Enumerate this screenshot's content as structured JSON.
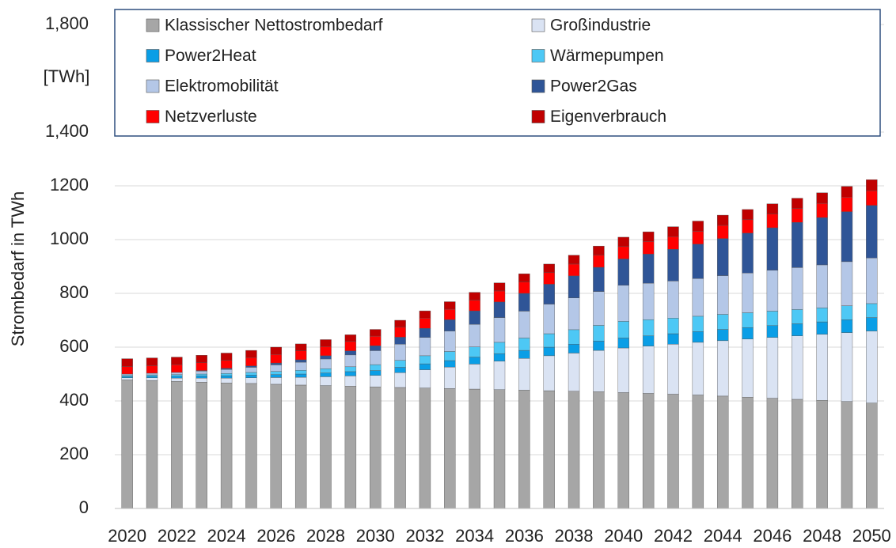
{
  "chart_data": {
    "type": "stacked_bar",
    "y_axis_label": "Strombedarf in TWh",
    "annotation": "[TWh]",
    "categories": [
      "2020",
      null,
      "2022",
      null,
      "2024",
      null,
      "2026",
      null,
      "2028",
      null,
      "2030",
      null,
      "2032",
      null,
      "2034",
      null,
      "2036",
      null,
      "2038",
      null,
      "2040",
      null,
      "2042",
      null,
      "2044",
      null,
      "2046",
      null,
      "2048",
      null,
      "2050"
    ],
    "ylim": [
      0,
      1800
    ],
    "yticks": [
      0,
      200,
      400,
      600,
      800,
      1000,
      1200,
      {
        "value": 1400,
        "label": "1,400"
      },
      {
        "value": 1800,
        "label": "1,800"
      }
    ],
    "grid": true,
    "series": [
      {
        "name": "Klassischer Nettostrombedarf",
        "color": "#a6a6a6",
        "values": [
          478,
          476,
          473,
          470,
          467,
          465,
          462,
          459,
          457,
          455,
          452,
          450,
          448,
          446,
          444,
          442,
          440,
          438,
          436,
          434,
          431,
          428,
          425,
          422,
          418,
          414,
          410,
          406,
          402,
          398,
          392
        ]
      },
      {
        "name": "Großindustrie",
        "color": "#dae3f3",
        "values": [
          8,
          10,
          12,
          15,
          18,
          21,
          25,
          29,
          33,
          38,
          43,
          55,
          68,
          80,
          93,
          106,
          118,
          130,
          142,
          154,
          166,
          176,
          186,
          196,
          206,
          216,
          226,
          236,
          246,
          256,
          268
        ]
      },
      {
        "name": "Power2Heat",
        "color": "#0a9ee6",
        "values": [
          5,
          6,
          7,
          8,
          9,
          10,
          11,
          12,
          14,
          16,
          18,
          20,
          22,
          24,
          26,
          28,
          30,
          32,
          33,
          35,
          37,
          38,
          39,
          40,
          42,
          43,
          44,
          45,
          46,
          48,
          50
        ]
      },
      {
        "name": "Wärmepumpen",
        "color": "#4dc8f5",
        "values": [
          4,
          5,
          6,
          7,
          8,
          10,
          12,
          14,
          16,
          18,
          22,
          26,
          30,
          34,
          38,
          42,
          46,
          50,
          54,
          58,
          62,
          60,
          58,
          57,
          56,
          55,
          54,
          53,
          52,
          52,
          52
        ]
      },
      {
        "name": "Elektromobilität",
        "color": "#b4c7e7",
        "values": [
          5,
          6,
          8,
          11,
          15,
          19,
          24,
          30,
          36,
          44,
          52,
          60,
          68,
          76,
          84,
          92,
          100,
          110,
          118,
          126,
          134,
          136,
          138,
          140,
          144,
          148,
          152,
          156,
          160,
          164,
          170
        ]
      },
      {
        "name": "Power2Gas",
        "color": "#2f5597",
        "values": [
          0,
          0,
          0,
          2,
          4,
          5,
          7,
          9,
          12,
          15,
          18,
          26,
          34,
          42,
          50,
          58,
          66,
          74,
          82,
          90,
          98,
          108,
          118,
          128,
          138,
          148,
          158,
          168,
          176,
          186,
          195
        ]
      },
      {
        "name": "Netzverluste",
        "color": "#ff0000",
        "values": [
          28,
          28,
          29,
          29,
          30,
          31,
          32,
          33,
          34,
          35,
          36,
          37,
          38,
          39,
          40,
          41,
          42,
          43,
          44,
          45,
          46,
          47,
          47,
          48,
          49,
          50,
          51,
          52,
          53,
          54,
          55
        ]
      },
      {
        "name": "Eigenverbrauch",
        "color": "#c00000",
        "values": [
          29,
          29,
          28,
          28,
          27,
          27,
          27,
          26,
          26,
          25,
          25,
          26,
          27,
          28,
          29,
          30,
          31,
          32,
          33,
          34,
          35,
          36,
          37,
          38,
          38,
          38,
          38,
          38,
          39,
          40,
          41
        ]
      }
    ]
  }
}
